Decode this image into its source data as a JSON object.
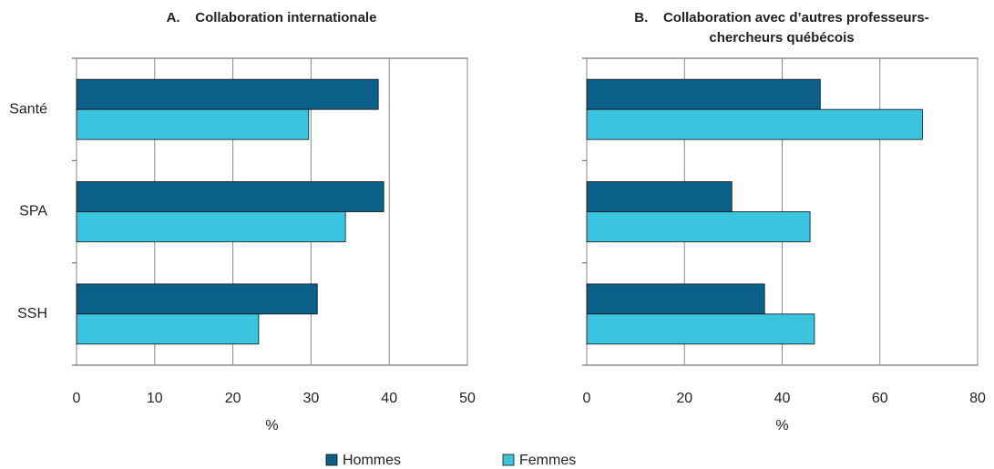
{
  "chart_data": [
    {
      "type": "bar",
      "orientation": "horizontal",
      "title": "A.    Collaboration internationale",
      "categories": [
        "Santé",
        "SPA",
        "SSH"
      ],
      "series": [
        {
          "name": "Hommes",
          "color": "#0b6089",
          "values": [
            38.6,
            39.3,
            30.8
          ]
        },
        {
          "name": "Femmes",
          "color": "#3cc4de",
          "values": [
            29.7,
            34.4,
            23.3
          ]
        }
      ],
      "xlim": [
        0,
        50
      ],
      "xticks": [
        0,
        10,
        20,
        30,
        40,
        50
      ],
      "xlabel": "%",
      "grid": true
    },
    {
      "type": "bar",
      "orientation": "horizontal",
      "title": "B.    Collaboration avec d’autres professeurs-chercheurs québécois",
      "series": [
        {
          "color": "#0b6089",
          "values": [
            47.8,
            29.7,
            36.4
          ]
        },
        {
          "color": "#3cc4de",
          "values": [
            68.7,
            45.7,
            46.6
          ]
        }
      ],
      "xlim": [
        0,
        80
      ],
      "xticks": [
        0,
        20,
        40,
        60,
        80
      ],
      "xlabel": "%",
      "grid": true
    }
  ]
}
